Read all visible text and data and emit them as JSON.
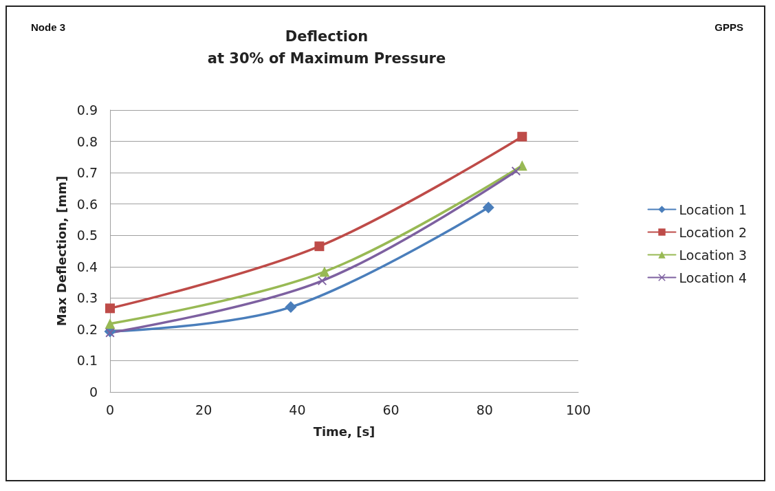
{
  "chart_data": {
    "type": "line",
    "title": "Deflection\nat 30% of Maximum Pressure",
    "xlabel": "Time, [s]",
    "ylabel": "Max Deflection, [mm]",
    "annotations": [
      "Node 3",
      "GPPS"
    ],
    "series": [
      {
        "name": "Location 1",
        "color": "#4a7ebb",
        "marker": "diamond",
        "x": [
          0,
          38.6,
          80.8
        ],
        "values": [
          0.193,
          0.271,
          0.589
        ]
      },
      {
        "name": "Location 2",
        "color": "#be4b48",
        "marker": "square",
        "x": [
          0,
          44.7,
          88
        ],
        "values": [
          0.267,
          0.465,
          0.815
        ]
      },
      {
        "name": "Location 3",
        "color": "#98b954",
        "marker": "triangle",
        "x": [
          0,
          45.8,
          88
        ],
        "values": [
          0.218,
          0.384,
          0.723
        ]
      },
      {
        "name": "Location 4",
        "color": "#7d60a0",
        "marker": "cross",
        "x": [
          0,
          45.3,
          86.7
        ],
        "values": [
          0.189,
          0.355,
          0.705
        ]
      }
    ],
    "xlim": [
      0,
      100
    ],
    "xticks": [
      0,
      20,
      40,
      60,
      80,
      100
    ],
    "ylim": [
      0,
      0.9
    ],
    "yticks": [
      0,
      0.1,
      0.2,
      0.3,
      0.4,
      0.5,
      0.6,
      0.7,
      0.8,
      0.9
    ],
    "grid": "y",
    "legend": "right",
    "line_style": "solid"
  }
}
